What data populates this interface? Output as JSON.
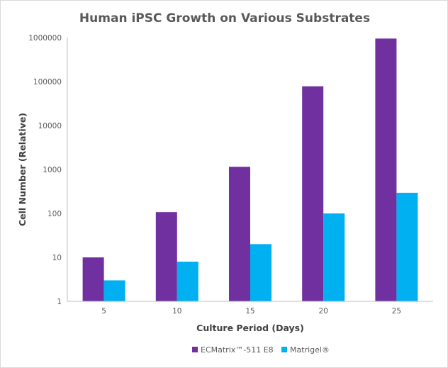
{
  "chart_data": {
    "type": "bar",
    "title": "Human iPSC Growth on Various Substrates",
    "xlabel": "Culture Period (Days)",
    "ylabel": "Cell Number (Relative)",
    "yscale": "log",
    "ylim": [
      1,
      1000000
    ],
    "yticks": [
      "1",
      "10",
      "100",
      "1000",
      "10000",
      "100000",
      "1000000"
    ],
    "categories": [
      "5",
      "10",
      "15",
      "20",
      "25"
    ],
    "series": [
      {
        "name": "ECMatrix™-511 E8",
        "color": "#7030a0",
        "values": [
          10,
          107,
          1150,
          78000,
          950000
        ]
      },
      {
        "name": "Matrigel®",
        "color": "#00b0f0",
        "values": [
          3,
          8,
          20,
          100,
          295
        ]
      }
    ],
    "grid": false,
    "legend": "bottom"
  }
}
